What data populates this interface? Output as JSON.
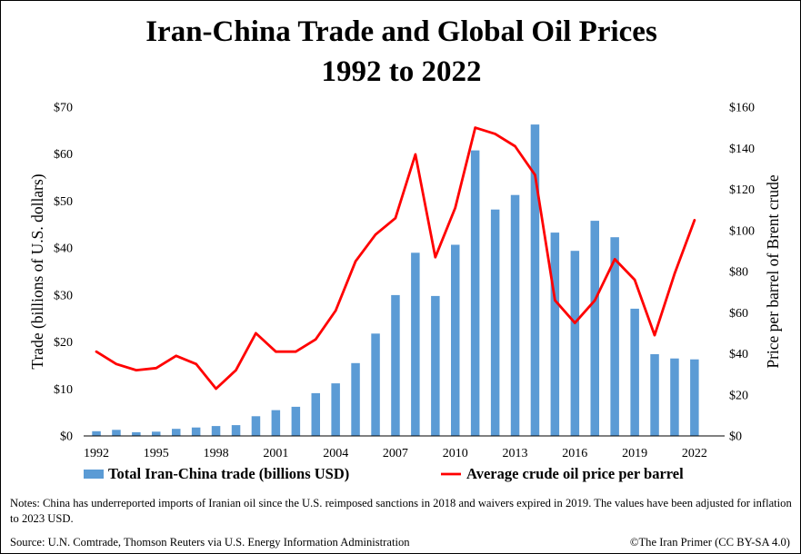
{
  "title_line1": "Iran-China Trade and Global Oil Prices",
  "title_line2": "1992 to 2022",
  "notes": "Notes: China has underreported imports of Iranian oil since the U.S. reimposed sanctions in 2018 and waivers expired in 2019. The values have been adjusted for inflation  to 2023 USD.",
  "source": "Source: U.N. Comtrade, Thomson Reuters via U.S. Energy Information Administration",
  "credit": "©The Iran Primer (CC BY-SA 4.0)",
  "colors": {
    "bars": "#5b9bd5",
    "line": "#ff0000"
  },
  "chart_data": {
    "type": "bar+line",
    "x": [
      1992,
      1993,
      1994,
      1995,
      1996,
      1997,
      1998,
      1999,
      2000,
      2001,
      2002,
      2003,
      2004,
      2005,
      2006,
      2007,
      2008,
      2009,
      2010,
      2011,
      2012,
      2013,
      2014,
      2015,
      2016,
      2017,
      2018,
      2019,
      2020,
      2021,
      2022
    ],
    "x_tick_labels": [
      "1992",
      "1995",
      "1998",
      "2001",
      "2004",
      "2007",
      "2010",
      "2013",
      "2016",
      "2019",
      "2022"
    ],
    "ylabel_left": "Trade (billions of U.S. dollars)",
    "ylabel_right": "Price per barrel of Brent crude",
    "ylim_left": [
      0,
      70
    ],
    "ylim_right": [
      0,
      160
    ],
    "y_ticks_left": [
      "$0",
      "$10",
      "$20",
      "$30",
      "$40",
      "$50",
      "$60",
      "$70"
    ],
    "y_ticks_right": [
      "$0",
      "$20",
      "$40",
      "$60",
      "$80",
      "$100",
      "$120",
      "$140",
      "$160"
    ],
    "grid": false,
    "legend_position": "bottom",
    "series": [
      {
        "name": "Total Iran-China trade (billions USD)",
        "type": "bar",
        "axis": "left",
        "values": [
          1.0,
          1.3,
          0.8,
          0.9,
          1.5,
          1.8,
          2.1,
          2.3,
          4.2,
          5.5,
          6.2,
          9.1,
          11.2,
          15.5,
          21.8,
          30.0,
          39.0,
          29.8,
          40.7,
          60.8,
          48.2,
          51.3,
          66.3,
          43.3,
          39.4,
          45.8,
          42.3,
          27.1,
          17.4,
          16.5,
          16.3
        ]
      },
      {
        "name": "Average crude oil price per barrel",
        "type": "line",
        "axis": "right",
        "values": [
          41,
          35,
          32,
          33,
          39,
          35,
          23,
          32,
          50,
          41,
          41,
          47,
          61,
          85,
          98,
          106,
          137,
          87,
          111,
          150,
          147,
          141,
          127,
          66,
          55,
          66,
          86,
          76,
          49,
          79,
          105
        ]
      }
    ]
  }
}
